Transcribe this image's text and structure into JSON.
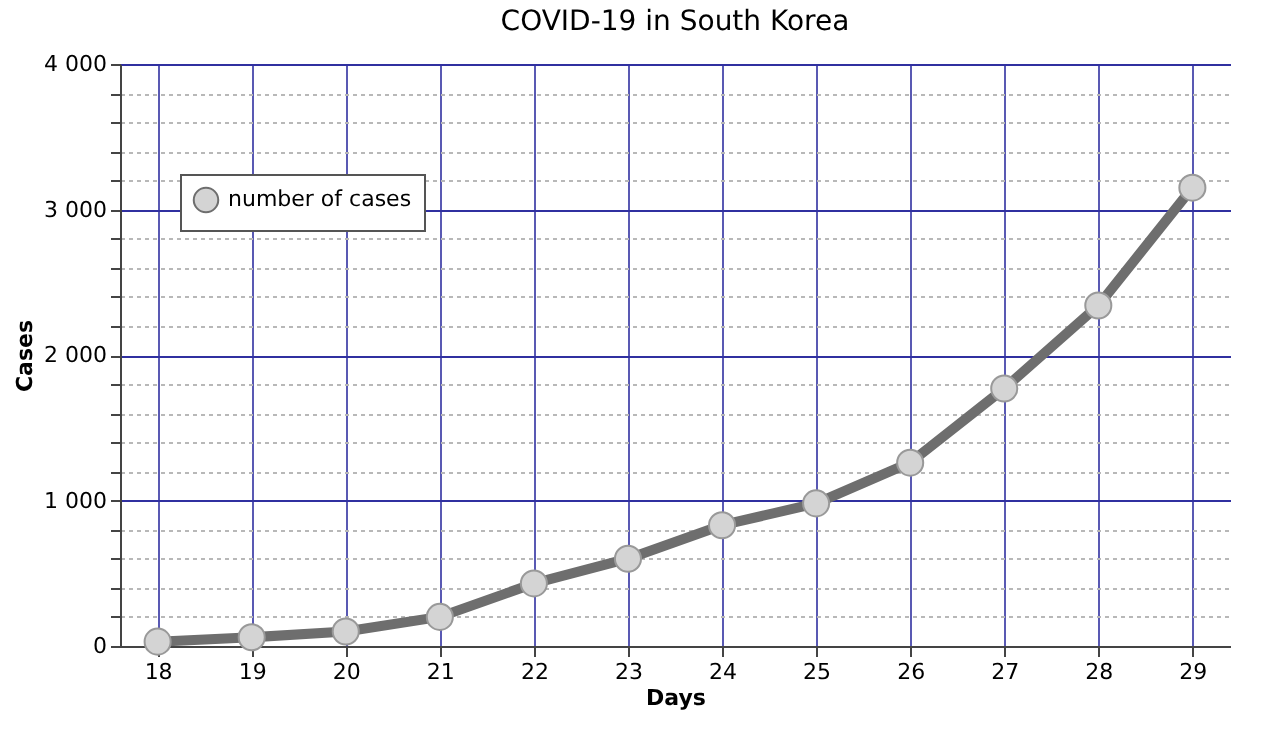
{
  "chart_data": {
    "type": "line",
    "title": "COVID-19 in South Korea",
    "xlabel": "Days",
    "ylabel": "Cases",
    "x": [
      18,
      19,
      20,
      21,
      22,
      23,
      24,
      25,
      26,
      27,
      28,
      29
    ],
    "series": [
      {
        "name": "number of cases",
        "color": "#6e6e6e",
        "values": [
          30,
          60,
          100,
          200,
          430,
          600,
          830,
          980,
          1260,
          1770,
          2340,
          3150
        ]
      }
    ],
    "xlim": [
      17.6,
      29.4
    ],
    "xticks": [
      18,
      19,
      20,
      21,
      22,
      23,
      24,
      25,
      26,
      27,
      28,
      29
    ],
    "ylim": [
      0,
      4000
    ],
    "yticks": [
      0,
      {
        "value": 200,
        "label": null
      },
      {
        "value": 400,
        "label": null
      },
      {
        "value": 600,
        "label": null
      },
      {
        "value": 800,
        "label": null
      },
      {
        "value": 1000,
        "label": "1 000"
      },
      {
        "value": 1200,
        "label": null
      },
      {
        "value": 1400,
        "label": null
      },
      {
        "value": 1600,
        "label": null
      },
      {
        "value": 1800,
        "label": null
      },
      {
        "value": 2000,
        "label": "2 000"
      },
      {
        "value": 2200,
        "label": null
      },
      {
        "value": 2400,
        "label": null
      },
      {
        "value": 2600,
        "label": null
      },
      {
        "value": 2800,
        "label": null
      },
      {
        "value": 3000,
        "label": "3 000"
      },
      {
        "value": 3200,
        "label": null
      },
      {
        "value": 3400,
        "label": null
      },
      {
        "value": 3600,
        "label": null
      },
      {
        "value": 3800,
        "label": null
      },
      {
        "value": 4000,
        "label": "4 000"
      }
    ],
    "grid": true,
    "legend": "top left",
    "marker": "circle",
    "line_style": "solid"
  }
}
